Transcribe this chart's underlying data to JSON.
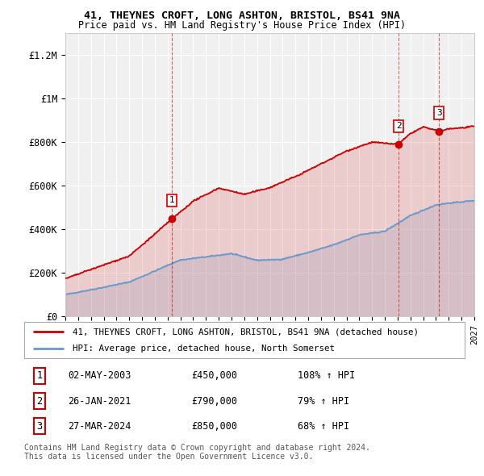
{
  "title": "41, THEYNES CROFT, LONG ASHTON, BRISTOL, BS41 9NA",
  "subtitle": "Price paid vs. HM Land Registry's House Price Index (HPI)",
  "xlim": [
    1995,
    2027
  ],
  "ylim": [
    0,
    1300000
  ],
  "yticks": [
    0,
    200000,
    400000,
    600000,
    800000,
    1000000,
    1200000
  ],
  "ytick_labels": [
    "£0",
    "£200K",
    "£400K",
    "£600K",
    "£800K",
    "£1M",
    "£1.2M"
  ],
  "background_color": "#ffffff",
  "plot_bg_color": "#f0f0f0",
  "grid_color": "#ffffff",
  "red_color": "#cc0000",
  "blue_color": "#6699cc",
  "hpi_anchors_x": [
    1995,
    2000,
    2004,
    2008,
    2010,
    2012,
    2014,
    2016,
    2018,
    2020,
    2022,
    2024,
    2027
  ],
  "hpi_anchors_y": [
    100000,
    160000,
    260000,
    290000,
    260000,
    265000,
    295000,
    330000,
    375000,
    390000,
    460000,
    510000,
    530000
  ],
  "red_anchors_x": [
    1995,
    2000,
    2003.33,
    2005,
    2007,
    2009,
    2011,
    2013,
    2015,
    2017,
    2019,
    2021.07,
    2022,
    2023,
    2024.23,
    2025,
    2027
  ],
  "red_anchors_y": [
    175000,
    280000,
    450000,
    530000,
    590000,
    560000,
    590000,
    640000,
    700000,
    760000,
    800000,
    790000,
    840000,
    870000,
    850000,
    860000,
    870000
  ],
  "transactions": [
    {
      "label": "1",
      "date": "02-MAY-2003",
      "price": 450000,
      "hpi_pct": "108% ↑ HPI",
      "x": 2003.33
    },
    {
      "label": "2",
      "date": "26-JAN-2021",
      "price": 790000,
      "hpi_pct": "79% ↑ HPI",
      "x": 2021.07
    },
    {
      "label": "3",
      "date": "27-MAR-2024",
      "price": 850000,
      "hpi_pct": "68% ↑ HPI",
      "x": 2024.23
    }
  ],
  "legend_line1": "41, THEYNES CROFT, LONG ASHTON, BRISTOL, BS41 9NA (detached house)",
  "legend_line2": "HPI: Average price, detached house, North Somerset",
  "copyright": "Contains HM Land Registry data © Crown copyright and database right 2024.\nThis data is licensed under the Open Government Licence v3.0."
}
